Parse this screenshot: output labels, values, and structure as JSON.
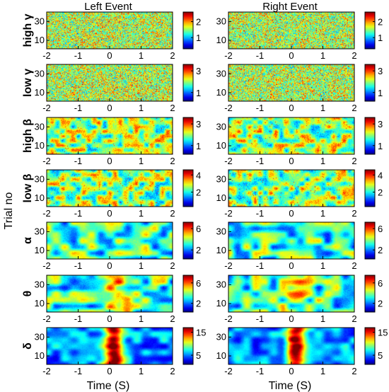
{
  "figure": {
    "column_titles": [
      "Left Event",
      "Right Event"
    ],
    "y_axis_label": "Trial no",
    "x_axis_label": "Time (S)"
  },
  "chart_data": {
    "type": "heatmap",
    "columns": [
      "Left Event",
      "Right Event"
    ],
    "xlabel": "Time (S)",
    "ylabel": "Trial no",
    "xlim": [
      -2,
      2
    ],
    "ylim": [
      1,
      40
    ],
    "x_ticks": [
      "-2",
      "-1",
      "0",
      "1",
      "2"
    ],
    "y_ticks": [
      "10",
      "30"
    ],
    "colormap": [
      "#00008f",
      "#0000ff",
      "#00ffff",
      "#ffff00",
      "#ff0000",
      "#800000"
    ],
    "bands": [
      {
        "label": "high γ",
        "pattern": "fine",
        "panels": [
          {
            "column": "Left Event",
            "clim": [
              0.3,
              2.6
            ],
            "cb_ticks": [
              "2",
              "1"
            ]
          },
          {
            "column": "Right Event",
            "clim": [
              0.3,
              2.6
            ],
            "cb_ticks": [
              "2",
              "1"
            ]
          }
        ]
      },
      {
        "label": "low γ",
        "pattern": "fine",
        "panels": [
          {
            "column": "Left Event",
            "clim": [
              0.2,
              3.6
            ],
            "cb_ticks": [
              "3",
              "1"
            ]
          },
          {
            "column": "Right Event",
            "clim": [
              0.2,
              3.6
            ],
            "cb_ticks": [
              "3",
              "1"
            ]
          }
        ]
      },
      {
        "label": "high β",
        "pattern": "medium",
        "panels": [
          {
            "column": "Left Event",
            "clim": [
              0.2,
              3.6
            ],
            "cb_ticks": [
              "3",
              "1"
            ]
          },
          {
            "column": "Right Event",
            "clim": [
              0.2,
              3.6
            ],
            "cb_ticks": [
              "3",
              "1"
            ]
          }
        ]
      },
      {
        "label": "low β",
        "pattern": "medium",
        "panels": [
          {
            "column": "Left Event",
            "clim": [
              0.3,
              4.6
            ],
            "cb_ticks": [
              "4",
              "2"
            ]
          },
          {
            "column": "Right Event",
            "clim": [
              0.3,
              4.6
            ],
            "cb_ticks": [
              "4",
              "2"
            ]
          }
        ]
      },
      {
        "label": "α",
        "pattern": "coarse",
        "panels": [
          {
            "column": "Left Event",
            "clim": [
              0.3,
              7.2
            ],
            "cb_ticks": [
              "6",
              "2"
            ]
          },
          {
            "column": "Right Event",
            "clim": [
              0.3,
              7.2
            ],
            "cb_ticks": [
              "6",
              "2"
            ]
          }
        ]
      },
      {
        "label": "θ",
        "pattern": "coarse",
        "peak": 0.3,
        "panels": [
          {
            "column": "Left Event",
            "clim": [
              0.3,
              7.5
            ],
            "cb_ticks": [
              "6",
              "2"
            ]
          },
          {
            "column": "Right Event",
            "clim": [
              0.3,
              7.5
            ],
            "cb_ticks": [
              "6",
              "2"
            ]
          }
        ]
      },
      {
        "label": "δ",
        "pattern": "blob",
        "peak": 1.0,
        "panels": [
          {
            "column": "Left Event",
            "clim": [
              1,
              17
            ],
            "cb_ticks": [
              "15",
              "5"
            ]
          },
          {
            "column": "Right Event",
            "clim": [
              1,
              17
            ],
            "cb_ticks": [
              "15",
              "5"
            ]
          }
        ]
      }
    ]
  }
}
